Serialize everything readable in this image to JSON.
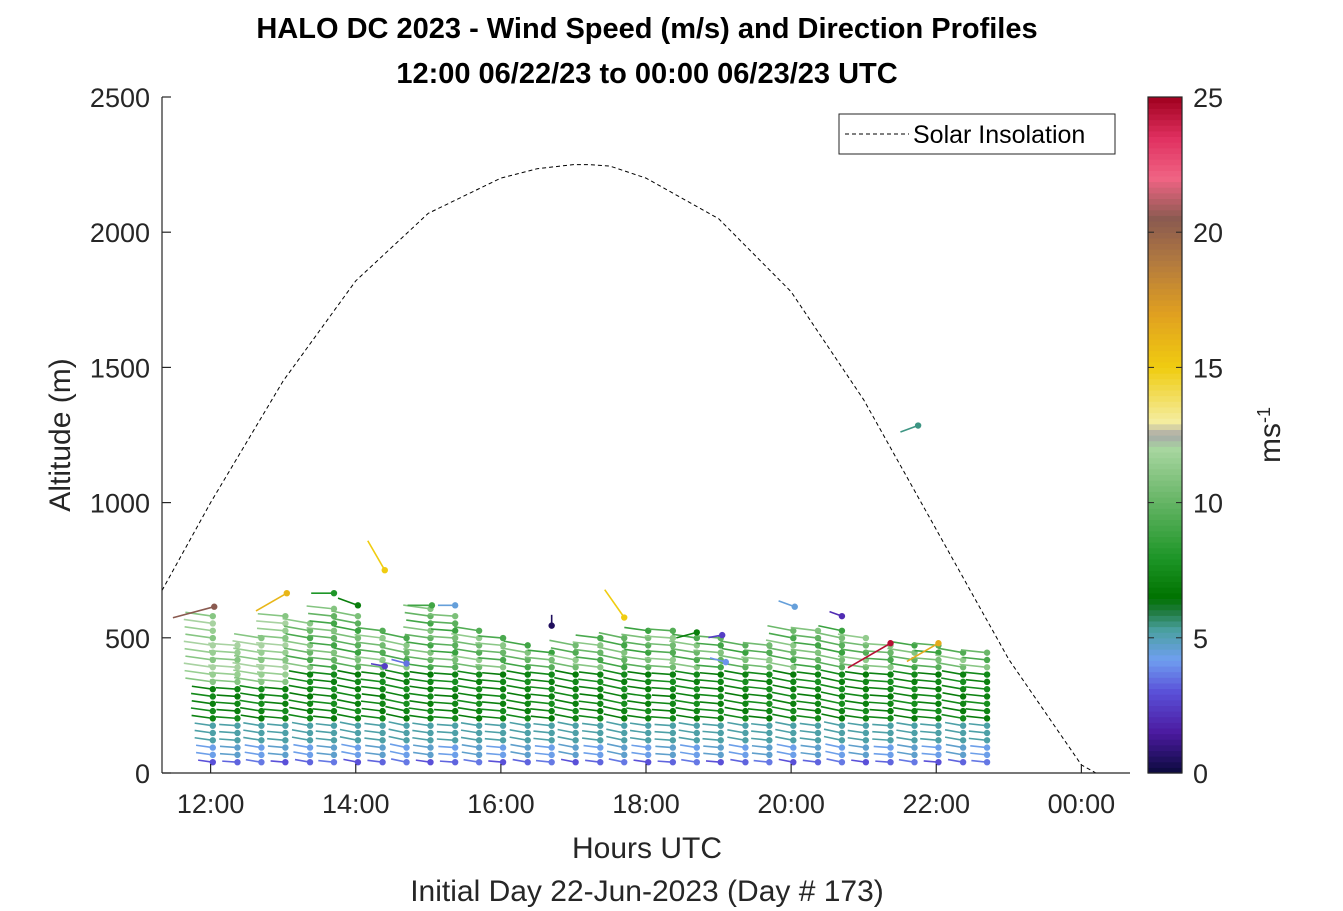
{
  "chart_data": {
    "type": "scatter",
    "title": "HALO DC 2023 - Wind Speed (m/s) and Direction Profiles",
    "subtitle": "12:00 06/22/23 to 00:00 06/23/23  UTC",
    "xlabel": "Hours UTC",
    "xlabel2": "Initial Day 22-Jun-2023 (Day # 173)",
    "ylabel": "Altitude (m)",
    "xlim": [
      11.33,
      24.67
    ],
    "ylim": [
      0,
      2500
    ],
    "x_tick_values": [
      12,
      14,
      16,
      18,
      20,
      22,
      24
    ],
    "x_tick_labels": [
      "12:00",
      "14:00",
      "16:00",
      "18:00",
      "20:00",
      "22:00",
      "00:00"
    ],
    "y_tick_values": [
      0,
      500,
      1000,
      1500,
      2000,
      2500
    ],
    "y_tick_labels": [
      "0",
      "500",
      "1000",
      "1500",
      "2000",
      "2500"
    ],
    "grid": false,
    "legend": {
      "position": "top-right",
      "entries": [
        "Solar Insolation"
      ]
    },
    "colorbar": {
      "label": "ms",
      "label_exponent": "-1",
      "range": [
        0,
        25
      ],
      "tick_values": [
        0,
        5,
        10,
        15,
        20,
        25
      ],
      "tick_labels": [
        "0",
        "5",
        "10",
        "15",
        "20",
        "25"
      ],
      "colors": [
        [
          0,
          "#0a0a3c"
        ],
        [
          1.5,
          "#4b1aa0"
        ],
        [
          3,
          "#5a50d8"
        ],
        [
          4.2,
          "#6f9ff0"
        ],
        [
          5.3,
          "#4aa0a0"
        ],
        [
          6,
          "#1e7a3c"
        ],
        [
          6.5,
          "#007300"
        ],
        [
          8,
          "#1e9628"
        ],
        [
          10,
          "#64b464"
        ],
        [
          12,
          "#a8d6a0"
        ],
        [
          12.5,
          "#a8a8a8"
        ],
        [
          13,
          "#f4eda0"
        ],
        [
          15,
          "#f0cc10"
        ],
        [
          17,
          "#e0a020"
        ],
        [
          19,
          "#b07840"
        ],
        [
          20.5,
          "#8a5a50"
        ],
        [
          22,
          "#f06484"
        ],
        [
          23.5,
          "#e03060"
        ],
        [
          25,
          "#a0001e"
        ]
      ]
    },
    "solar_insolation": {
      "x": [
        11.33,
        12,
        13,
        14,
        15,
        16,
        16.5,
        17,
        17.2,
        17.5,
        18,
        19,
        20,
        21,
        22,
        23,
        24,
        24.2,
        24.33,
        24.6
      ],
      "y": [
        675,
        1000,
        1450,
        1820,
        2070,
        2200,
        2235,
        2250,
        2250,
        2245,
        2200,
        2050,
        1780,
        1380,
        900,
        420,
        30,
        0,
        0,
        0
      ]
    },
    "profile_times": [
      12.03,
      12.37,
      12.7,
      13.03,
      13.37,
      13.7,
      14.03,
      14.37,
      14.7,
      15.03,
      15.37,
      15.7,
      16.03,
      16.37,
      16.7,
      17.03,
      17.37,
      17.7,
      18.03,
      18.37,
      18.7,
      19.03,
      19.37,
      19.7,
      20.03,
      20.37,
      20.7,
      21.03,
      21.37,
      21.7,
      22.03,
      22.37,
      22.7
    ],
    "profile_tops_m": [
      590,
      480,
      510,
      590,
      560,
      620,
      600,
      540,
      510,
      620,
      590,
      550,
      510,
      480,
      450,
      480,
      500,
      520,
      540,
      530,
      520,
      500,
      490,
      480,
      540,
      530,
      530,
      510,
      490,
      480,
      480,
      460,
      450
    ],
    "wind_barbs": [
      {
        "t": 12.05,
        "alt": 615,
        "speed": 20.5,
        "dir": 285
      },
      {
        "t": 13.05,
        "alt": 665,
        "speed": 16,
        "dir": 300
      },
      {
        "t": 13.7,
        "alt": 665,
        "speed": 8,
        "dir": 270
      },
      {
        "t": 14.03,
        "alt": 620,
        "speed": 7,
        "dir": 250
      },
      {
        "t": 14.4,
        "alt": 750,
        "speed": 15,
        "dir": 210
      },
      {
        "t": 15.05,
        "alt": 620,
        "speed": 9,
        "dir": 270
      },
      {
        "t": 15.37,
        "alt": 620,
        "speed": 4.5,
        "dir": 270
      },
      {
        "t": 16.7,
        "alt": 545,
        "speed": 0.5,
        "dir": 180
      },
      {
        "t": 17.7,
        "alt": 575,
        "speed": 15,
        "dir": 215
      },
      {
        "t": 19.05,
        "alt": 510,
        "speed": 2.5,
        "dir": 280
      },
      {
        "t": 20.05,
        "alt": 615,
        "speed": 4.5,
        "dir": 250
      },
      {
        "t": 20.7,
        "alt": 580,
        "speed": 2,
        "dir": 250
      },
      {
        "t": 21.37,
        "alt": 480,
        "speed": 24.5,
        "dir": 300
      },
      {
        "t": 21.75,
        "alt": 1285,
        "speed": 5.5,
        "dir": 290
      },
      {
        "t": 22.03,
        "alt": 480,
        "speed": 16.5,
        "dir": 300
      },
      {
        "t": 14.4,
        "alt": 395,
        "speed": 2.5,
        "dir": 260
      },
      {
        "t": 14.7,
        "alt": 405,
        "speed": 3.5,
        "dir": 255
      },
      {
        "t": 18.7,
        "alt": 520,
        "speed": 7,
        "dir": 285
      },
      {
        "t": 19.1,
        "alt": 410,
        "speed": 4,
        "dir": 255
      }
    ]
  }
}
